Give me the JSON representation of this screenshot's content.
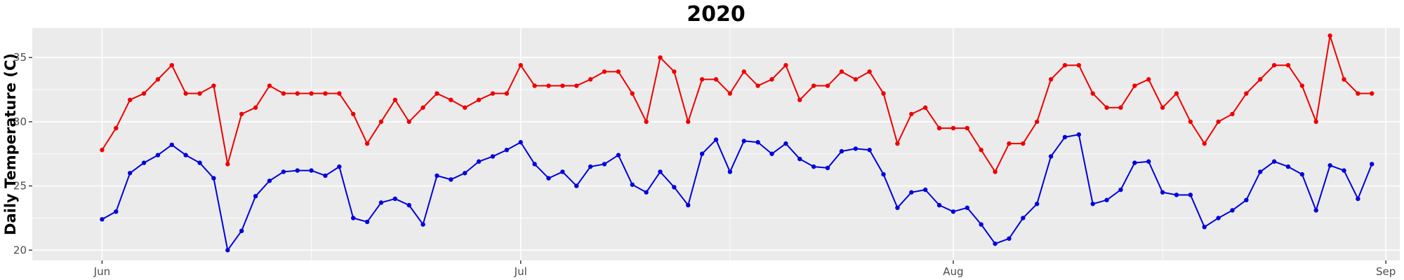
{
  "chart_data": {
    "type": "line",
    "title": "2020",
    "xlabel": "",
    "ylabel": "Daily Temperature (C)",
    "x_ticks": [
      "Jun",
      "Jul",
      "Aug",
      "Sep"
    ],
    "y_ticks": [
      "20",
      "25",
      "30",
      "35"
    ],
    "x": [
      "2020-06-01",
      "2020-06-02",
      "2020-06-03",
      "2020-06-04",
      "2020-06-05",
      "2020-06-06",
      "2020-06-07",
      "2020-06-08",
      "2020-06-09",
      "2020-06-10",
      "2020-06-11",
      "2020-06-12",
      "2020-06-13",
      "2020-06-14",
      "2020-06-15",
      "2020-06-16",
      "2020-06-17",
      "2020-06-18",
      "2020-06-19",
      "2020-06-20",
      "2020-06-21",
      "2020-06-22",
      "2020-06-23",
      "2020-06-24",
      "2020-06-25",
      "2020-06-26",
      "2020-06-27",
      "2020-06-28",
      "2020-06-29",
      "2020-06-30",
      "2020-07-01",
      "2020-07-02",
      "2020-07-03",
      "2020-07-04",
      "2020-07-05",
      "2020-07-06",
      "2020-07-07",
      "2020-07-08",
      "2020-07-09",
      "2020-07-10",
      "2020-07-11",
      "2020-07-12",
      "2020-07-13",
      "2020-07-14",
      "2020-07-15",
      "2020-07-16",
      "2020-07-17",
      "2020-07-18",
      "2020-07-19",
      "2020-07-20",
      "2020-07-21",
      "2020-07-22",
      "2020-07-23",
      "2020-07-24",
      "2020-07-25",
      "2020-07-26",
      "2020-07-27",
      "2020-07-28",
      "2020-07-29",
      "2020-07-30",
      "2020-07-31",
      "2020-08-01",
      "2020-08-02",
      "2020-08-03",
      "2020-08-04",
      "2020-08-05",
      "2020-08-06",
      "2020-08-07",
      "2020-08-08",
      "2020-08-09",
      "2020-08-10",
      "2020-08-11",
      "2020-08-12",
      "2020-08-13",
      "2020-08-14",
      "2020-08-15",
      "2020-08-16",
      "2020-08-17",
      "2020-08-18",
      "2020-08-19",
      "2020-08-20",
      "2020-08-21",
      "2020-08-22",
      "2020-08-23",
      "2020-08-24",
      "2020-08-25",
      "2020-08-26",
      "2020-08-27",
      "2020-08-28",
      "2020-08-29",
      "2020-08-30",
      "2020-08-31"
    ],
    "series": [
      {
        "color": "#ee0000",
        "values": [
          27.8,
          29.5,
          31.7,
          32.2,
          33.3,
          34.4,
          32.2,
          32.2,
          32.8,
          26.7,
          30.6,
          31.1,
          32.8,
          32.2,
          32.2,
          32.2,
          32.2,
          32.2,
          30.6,
          28.3,
          30.0,
          31.7,
          30.0,
          31.1,
          32.2,
          31.7,
          31.1,
          31.7,
          32.2,
          32.2,
          34.4,
          32.8,
          32.8,
          32.8,
          32.8,
          33.3,
          33.9,
          33.9,
          32.2,
          30.0,
          35.0,
          33.9,
          30.0,
          33.3,
          33.3,
          32.2,
          33.9,
          32.8,
          33.3,
          34.4,
          31.7,
          32.8,
          32.8,
          33.9,
          33.3,
          33.9,
          32.2,
          28.3,
          30.6,
          31.1,
          29.5,
          29.5,
          29.5,
          27.8,
          26.1,
          28.3,
          28.3,
          30.0,
          33.3,
          34.4,
          34.4,
          32.2,
          31.1,
          31.1,
          32.8,
          33.3,
          31.1,
          32.2,
          30.0,
          28.3,
          30.0,
          30.6,
          32.2,
          33.3,
          34.4,
          34.4,
          32.8,
          30.0,
          36.7,
          33.3,
          32.2,
          32.2
        ]
      },
      {
        "color": "#0000dd",
        "values": [
          22.4,
          23.0,
          26.0,
          26.8,
          27.4,
          28.2,
          27.4,
          26.8,
          25.6,
          20.0,
          21.5,
          24.2,
          25.4,
          26.1,
          26.2,
          26.2,
          25.8,
          26.5,
          22.5,
          22.2,
          23.7,
          24.0,
          23.5,
          22.0,
          25.8,
          25.5,
          26.0,
          26.9,
          27.3,
          27.8,
          28.4,
          26.7,
          25.6,
          26.1,
          25.0,
          26.5,
          26.7,
          27.4,
          25.1,
          24.5,
          26.1,
          24.9,
          23.5,
          27.5,
          28.6,
          26.1,
          28.5,
          28.4,
          27.5,
          28.3,
          27.1,
          26.5,
          26.4,
          27.7,
          27.9,
          27.8,
          25.9,
          23.3,
          24.5,
          24.7,
          23.5,
          23.0,
          23.3,
          22.0,
          20.5,
          20.9,
          22.5,
          23.6,
          27.3,
          28.8,
          29.0,
          23.6,
          23.9,
          24.7,
          26.8,
          26.9,
          24.5,
          24.3,
          24.3,
          21.8,
          22.5,
          23.1,
          23.9,
          26.1,
          26.9,
          26.5,
          25.9,
          23.1,
          26.6,
          26.2,
          24.0,
          26.7
        ]
      }
    ],
    "ylim": [
      19.2,
      37.3
    ],
    "xlim": [
      "2020-05-27",
      "2020-09-02"
    ],
    "grid": true,
    "background": "#ebebeb",
    "legend": "none"
  }
}
